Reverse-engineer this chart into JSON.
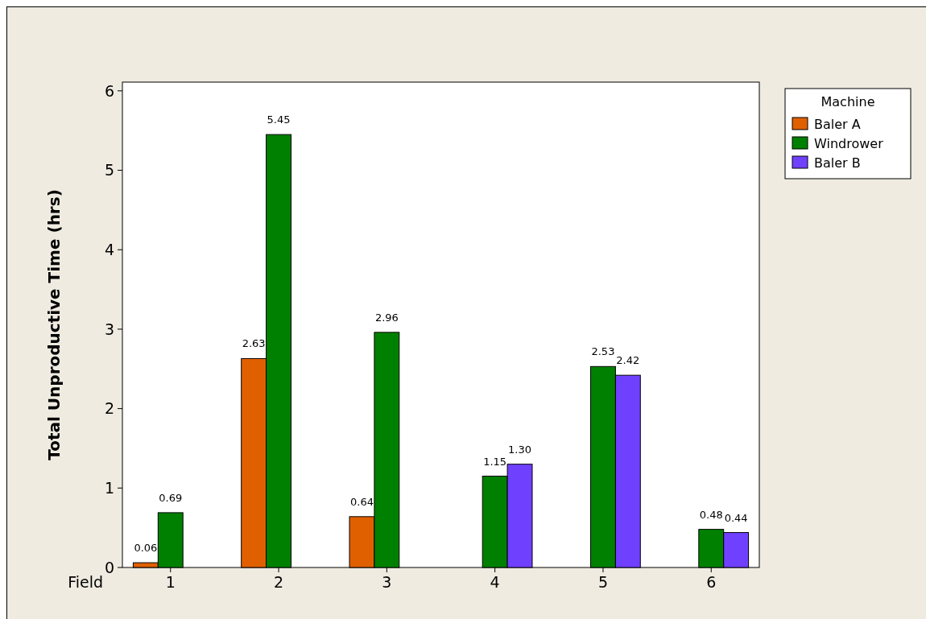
{
  "chart_data": {
    "type": "bar",
    "xlabel": "Field",
    "ylabel": "Total Unproductive Time (hrs)",
    "legend_title": "Machine",
    "legend": "top right",
    "categories": [
      "1",
      "2",
      "3",
      "4",
      "5",
      "6"
    ],
    "ylim": [
      0,
      6.11
    ],
    "yticks": [
      0,
      1,
      2,
      3,
      4,
      5,
      6
    ],
    "grid": false,
    "series": [
      {
        "name": "Baler A",
        "color": "#e06000",
        "values": [
          0.06,
          2.63,
          0.64,
          null,
          null,
          null
        ],
        "value_labels": [
          "0.06",
          "2.63",
          "0.64",
          null,
          null,
          null
        ]
      },
      {
        "name": "Windrower",
        "color": "#008000",
        "values": [
          0.69,
          5.45,
          2.96,
          1.15,
          2.53,
          0.48
        ],
        "value_labels": [
          "0.69",
          "5.45",
          "2.96",
          "1.15",
          "2.53",
          "0.48"
        ]
      },
      {
        "name": "Baler B",
        "color": "#7040ff",
        "values": [
          null,
          null,
          null,
          1.3,
          2.42,
          0.44
        ],
        "value_labels": [
          null,
          null,
          null,
          "1.30",
          "2.42",
          "0.44"
        ]
      }
    ]
  }
}
